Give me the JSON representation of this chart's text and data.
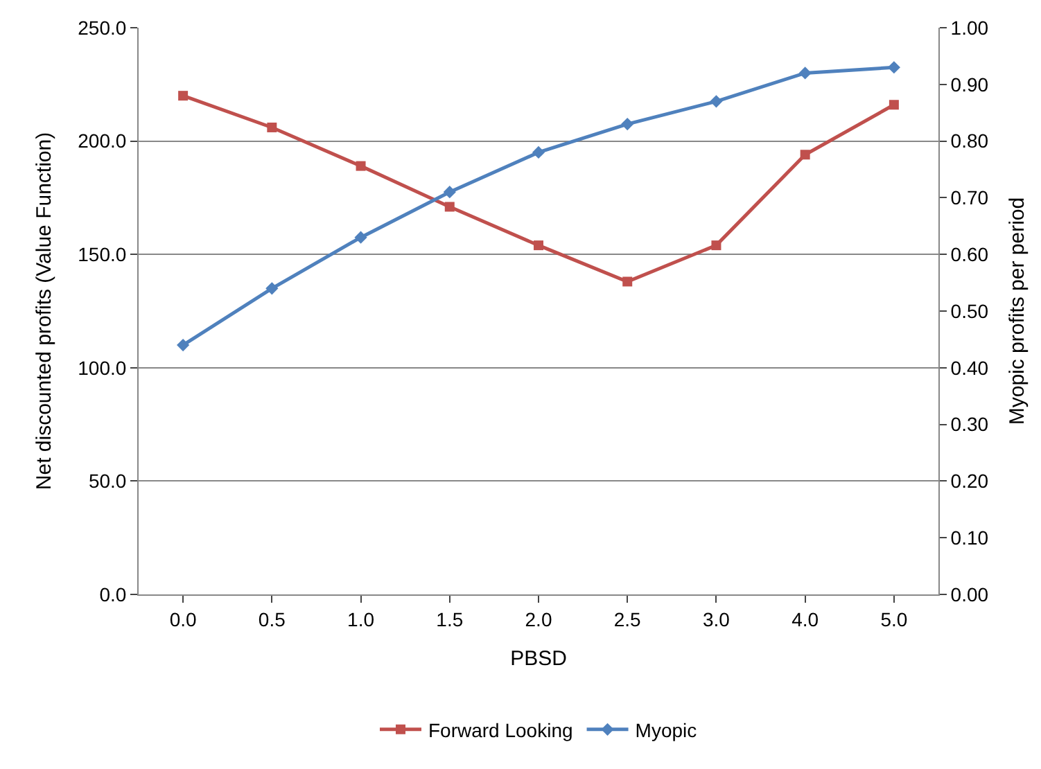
{
  "chart_data": {
    "type": "line",
    "xlabel": "PBSD",
    "ylabel": "Net discounted profits (Value Function)",
    "y2label": "Myopic profits per period",
    "categories": [
      "0.0",
      "0.5",
      "1.0",
      "1.5",
      "2.0",
      "2.5",
      "3.0",
      "4.0",
      "5.0"
    ],
    "series": [
      {
        "name": "Forward Looking",
        "color": "#c0504d",
        "marker": "square",
        "values": [
          220,
          206,
          189,
          171,
          154,
          138,
          154,
          194,
          216
        ]
      },
      {
        "name": "Myopic",
        "color": "#4f81bd",
        "marker": "diamond",
        "axis": "y2",
        "values": [
          0.44,
          0.54,
          0.63,
          0.71,
          0.78,
          0.83,
          0.87,
          0.92,
          0.93
        ]
      }
    ],
    "ylim": [
      0,
      250
    ],
    "yticks": [
      {
        "value": 0,
        "label": "0.0"
      },
      {
        "value": 50,
        "label": "50.0"
      },
      {
        "value": 100,
        "label": "100.0"
      },
      {
        "value": 150,
        "label": "150.0"
      },
      {
        "value": 200,
        "label": "200.0"
      },
      {
        "value": 250,
        "label": "250.0"
      }
    ],
    "y2lim": [
      0,
      1
    ],
    "y2ticks": [
      {
        "value": 0,
        "label": "0.00"
      },
      {
        "value": 0.1,
        "label": "0.10"
      },
      {
        "value": 0.2,
        "label": "0.20"
      },
      {
        "value": 0.3,
        "label": "0.30"
      },
      {
        "value": 0.4,
        "label": "0.40"
      },
      {
        "value": 0.5,
        "label": "0.50"
      },
      {
        "value": 0.6,
        "label": "0.60"
      },
      {
        "value": 0.7,
        "label": "0.70"
      },
      {
        "value": 0.8,
        "label": "0.80"
      },
      {
        "value": 0.9,
        "label": "0.90"
      },
      {
        "value": 1,
        "label": "1.00"
      }
    ],
    "grid": "y",
    "legend": "bottom",
    "line_style": "solid"
  }
}
